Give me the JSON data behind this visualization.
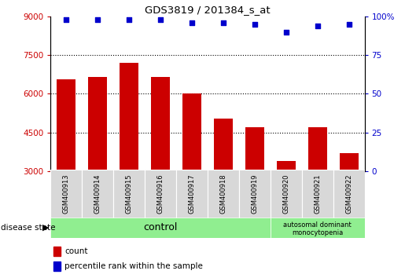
{
  "title": "GDS3819 / 201384_s_at",
  "samples": [
    "GSM400913",
    "GSM400914",
    "GSM400915",
    "GSM400916",
    "GSM400917",
    "GSM400918",
    "GSM400919",
    "GSM400920",
    "GSM400921",
    "GSM400922"
  ],
  "bar_values": [
    6550,
    6650,
    7200,
    6650,
    6000,
    5050,
    4700,
    3400,
    4700,
    3700
  ],
  "percentile_values": [
    98,
    98,
    98,
    98,
    96,
    96,
    95,
    90,
    94,
    95
  ],
  "ylim_left": [
    3000,
    9000
  ],
  "ylim_right": [
    0,
    100
  ],
  "yticks_left": [
    3000,
    4500,
    6000,
    7500,
    9000
  ],
  "yticks_right": [
    0,
    25,
    50,
    75,
    100
  ],
  "bar_color": "#cc0000",
  "dot_color": "#0000cc",
  "bar_bottom": 3000,
  "control_samples": 7,
  "disease_label_line1": "autosomal dominant",
  "disease_label_line2": "monocytopenia",
  "control_label": "control",
  "legend_count_label": "count",
  "legend_percentile_label": "percentile rank within the sample",
  "disease_state_label": "disease state",
  "bg_color": "#d8d8d8",
  "green_color": "#90ee90",
  "hgrid_values": [
    4500,
    6000,
    7500
  ]
}
